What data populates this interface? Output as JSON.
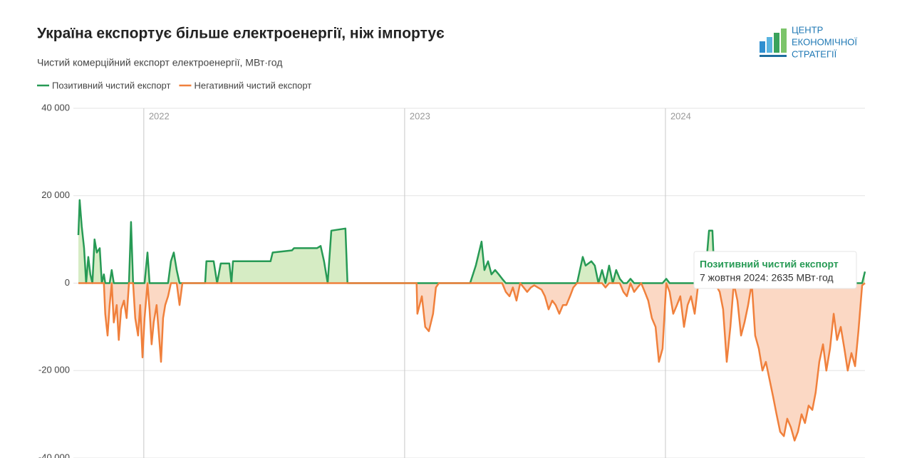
{
  "chart_data": {
    "type": "line",
    "title": "Україна експортує більше електроенергії, ніж імпортує",
    "subtitle": "Чистий комерційний експорт електроенергії, МВт·год",
    "logo": [
      "ЦЕНТР",
      "ЕКОНОМІЧНОЇ",
      "СТРАТЕГІЇ"
    ],
    "tooltip": {
      "title": "Позитивний чистий експорт",
      "text": "7 жовтня 2024: 2635 МВт·год"
    },
    "xlim": [
      2021.73,
      2024.765
    ],
    "xticks": [
      2022,
      2023,
      2024
    ],
    "ylim": [
      -40000,
      40000
    ],
    "yticks": [
      {
        "value": -40000,
        "label": "-40 000"
      },
      {
        "value": -20000,
        "label": "-20 000"
      },
      0,
      {
        "value": 20000,
        "label": "20 000"
      },
      {
        "value": 40000,
        "label": "40 000"
      }
    ],
    "grid": true,
    "legend": "top-left",
    "x": [
      2021.749,
      2021.754,
      2021.762,
      2021.771,
      2021.779,
      2021.787,
      2021.795,
      2021.803,
      2021.811,
      2021.82,
      2021.831,
      2021.839,
      2021.847,
      2021.852,
      2021.861,
      2021.869,
      2021.877,
      2021.885,
      2021.896,
      2021.904,
      2021.913,
      2021.924,
      2021.934,
      2021.943,
      2021.951,
      2021.959,
      2021.967,
      2021.978,
      2021.986,
      2021.995,
      2022.003,
      2022.014,
      2022.022,
      2022.03,
      2022.038,
      2022.049,
      2022.057,
      2022.066,
      2022.074,
      2022.082,
      2022.093,
      2022.104,
      2022.115,
      2022.126,
      2022.137,
      2022.148,
      2022.235,
      2022.24,
      2022.268,
      2022.281,
      2022.295,
      2022.328,
      2022.336,
      2022.342,
      2022.486,
      2022.494,
      2022.568,
      2022.576,
      2022.664,
      2022.678,
      2022.691,
      2022.705,
      2022.719,
      2022.773,
      2022.781,
      2023.046,
      2023.049,
      2023.066,
      2023.079,
      2023.093,
      2023.109,
      2023.12,
      2023.131,
      2023.251,
      2023.273,
      2023.295,
      2023.306,
      2023.32,
      2023.333,
      2023.347,
      2023.361,
      2023.374,
      2023.388,
      2023.402,
      2023.415,
      2023.429,
      2023.443,
      2023.47,
      2023.484,
      2023.497,
      2023.525,
      2023.538,
      2023.552,
      2023.566,
      2023.579,
      2023.593,
      2023.607,
      2023.62,
      2023.634,
      2023.647,
      2023.661,
      2023.683,
      2023.694,
      2023.716,
      2023.729,
      2023.743,
      2023.757,
      2023.77,
      2023.784,
      2023.798,
      2023.811,
      2023.825,
      2023.839,
      2023.852,
      2023.866,
      2023.88,
      2023.893,
      2023.907,
      2023.921,
      2023.934,
      2023.948,
      2023.962,
      2023.975,
      2023.989,
      2024.003,
      2024.016,
      2024.03,
      2024.044,
      2024.057,
      2024.071,
      2024.085,
      2024.098,
      2024.112,
      2024.126,
      2024.153,
      2024.167,
      2024.18,
      2024.189,
      2024.208,
      2024.221,
      2024.235,
      2024.249,
      2024.262,
      2024.276,
      2024.29,
      2024.303,
      2024.317,
      2024.331,
      2024.344,
      2024.358,
      2024.372,
      2024.385,
      2024.399,
      2024.413,
      2024.426,
      2024.44,
      2024.454,
      2024.467,
      2024.481,
      2024.495,
      2024.508,
      2024.522,
      2024.535,
      2024.549,
      2024.563,
      2024.576,
      2024.59,
      2024.604,
      2024.617,
      2024.631,
      2024.645,
      2024.658,
      2024.672,
      2024.686,
      2024.699,
      2024.713,
      2024.727,
      2024.74,
      2024.754,
      2024.765
    ],
    "series": [
      {
        "name": "Позитивний чистий експорт",
        "color": "#279a55",
        "fill": "#d6ecc4",
        "values": [
          11000,
          19000,
          13000,
          8000,
          0,
          6000,
          2000,
          0,
          10000,
          7000,
          8000,
          0,
          2000,
          0,
          0,
          0,
          3000,
          0,
          0,
          0,
          0,
          0,
          0,
          0,
          14000,
          0,
          0,
          0,
          0,
          0,
          0,
          7000,
          0,
          0,
          0,
          0,
          0,
          0,
          0,
          0,
          0,
          5000,
          7000,
          3000,
          0,
          0,
          0,
          5000,
          5000,
          0,
          4500,
          4500,
          0,
          5000,
          5000,
          7000,
          7500,
          8000,
          8000,
          8500,
          5000,
          0,
          12000,
          12500,
          0,
          0,
          0,
          0,
          0,
          0,
          0,
          0,
          0,
          0,
          4000,
          9500,
          3000,
          5000,
          2000,
          3000,
          2000,
          1000,
          0,
          0,
          0,
          0,
          0,
          0,
          0,
          0,
          0,
          0,
          0,
          0,
          0,
          0,
          0,
          0,
          0,
          0,
          0,
          6000,
          4000,
          5000,
          4000,
          0,
          3000,
          0,
          4000,
          0,
          3000,
          1000,
          0,
          0,
          1000,
          0,
          0,
          0,
          0,
          0,
          0,
          0,
          0,
          0,
          1000,
          0,
          0,
          0,
          0,
          0,
          0,
          0,
          0,
          0,
          2000,
          12000,
          12000,
          0,
          0,
          0,
          0,
          0,
          0,
          0,
          0,
          0,
          0,
          0,
          0,
          0,
          0,
          0,
          0,
          0,
          0,
          0,
          0,
          0,
          0,
          0,
          0,
          0,
          0,
          0,
          0,
          0,
          0,
          0,
          0,
          0,
          0,
          0,
          0,
          0,
          0,
          0,
          0,
          0,
          0,
          2635
        ]
      },
      {
        "name": "Негативний чистий експорт",
        "color": "#f0803c",
        "fill": "#fbd8c4",
        "values": [
          0,
          0,
          0,
          0,
          0,
          0,
          0,
          0,
          0,
          0,
          0,
          0,
          0,
          -7000,
          -12000,
          -5000,
          0,
          -9000,
          -5000,
          -13000,
          -6000,
          -4000,
          -8000,
          0,
          0,
          0,
          -8000,
          -12000,
          -5000,
          -17000,
          -8000,
          0,
          -6000,
          -14000,
          -9000,
          -5000,
          -11000,
          -18000,
          -8000,
          -5000,
          -3000,
          0,
          0,
          0,
          -5000,
          0,
          0,
          0,
          0,
          0,
          0,
          0,
          0,
          0,
          0,
          0,
          0,
          0,
          0,
          0,
          0,
          0,
          0,
          0,
          0,
          0,
          -7000,
          -3000,
          -10000,
          -11000,
          -7000,
          -1000,
          0,
          0,
          0,
          0,
          0,
          0,
          0,
          0,
          0,
          0,
          -2000,
          -3000,
          -1000,
          -4000,
          0,
          -2000,
          -1000,
          -500,
          -1500,
          -3000,
          -6000,
          -4000,
          -5000,
          -7000,
          -5000,
          -5000,
          -3000,
          -1000,
          0,
          0,
          0,
          0,
          0,
          0,
          0,
          -1000,
          0,
          0,
          0,
          0,
          -2000,
          -3000,
          0,
          -2000,
          -1000,
          0,
          -2000,
          -4000,
          -8000,
          -10000,
          -18000,
          -15000,
          0,
          -2000,
          -7000,
          -5000,
          -3000,
          -10000,
          -5000,
          -3000,
          -7000,
          0,
          0,
          0,
          0,
          0,
          -2000,
          -6000,
          -18000,
          -10000,
          0,
          -4000,
          -12000,
          -9000,
          -5000,
          0,
          -12000,
          -15000,
          -20000,
          -18000,
          -22000,
          -26000,
          -30000,
          -34000,
          -35000,
          -31000,
          -33000,
          -36000,
          -34000,
          -30000,
          -32000,
          -28000,
          -29000,
          -25000,
          -18000,
          -14000,
          -20000,
          -15000,
          -7000,
          -13000,
          -10000,
          -15000,
          -20000,
          -16000,
          -19000,
          -11000,
          -500,
          0
        ]
      }
    ]
  }
}
